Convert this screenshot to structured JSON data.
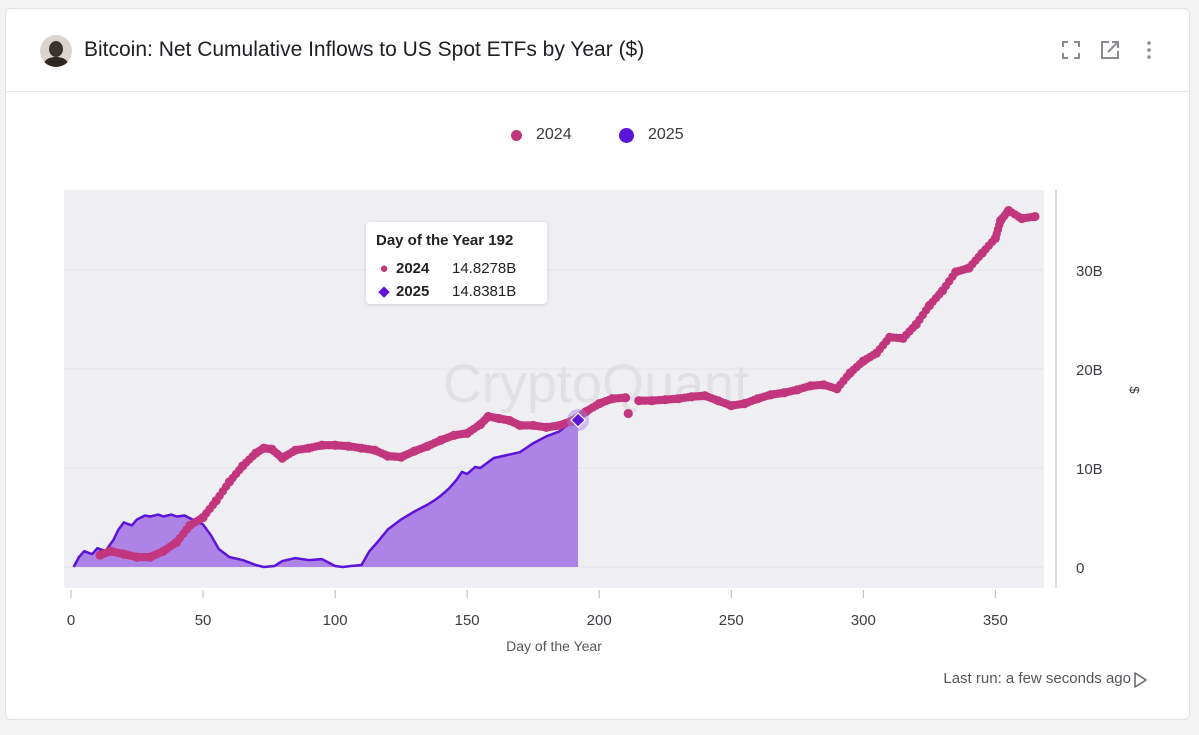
{
  "header": {
    "title": "Bitcoin: Net Cumulative Inflows to US Spot ETFs by Year ($)",
    "icons": [
      "avatar",
      "fullscreen-icon",
      "open-external-icon",
      "more-vertical-icon"
    ]
  },
  "legend": {
    "items": [
      {
        "label": "2024",
        "color": "#c2367e"
      },
      {
        "label": "2025",
        "color": "#5b14d8"
      }
    ]
  },
  "watermark": "CryptoQuant",
  "tooltip": {
    "title": "Day of the Year 192",
    "rows": [
      {
        "marker": "●",
        "name": "2024",
        "value": "14.8278B",
        "color": "#c2367e"
      },
      {
        "marker": "◆",
        "name": "2025",
        "value": "14.8381B",
        "color": "#5b14d8"
      }
    ]
  },
  "footer": {
    "last_run": "Last run: a few seconds ago",
    "icon": "play-icon"
  },
  "colors": {
    "series_2024": "#c2367e",
    "series_2025_line": "#5b14d8",
    "series_2025_fill": "#a87ae6",
    "plot_bg": "#efeff3"
  },
  "chart_data": {
    "type": "scatter",
    "title": "Bitcoin: Net Cumulative Inflows to US Spot ETFs by Year ($)",
    "xlabel": "Day of the Year",
    "ylabel": "$",
    "xlim": [
      0,
      368
    ],
    "ylim": [
      -2,
      38
    ],
    "x_ticks": [
      0,
      50,
      100,
      150,
      200,
      250,
      300,
      350
    ],
    "x_tick_labels": [
      "0",
      "50",
      "100",
      "150",
      "200",
      "250",
      "300",
      "350"
    ],
    "y_ticks": [
      0,
      10,
      20,
      30
    ],
    "y_tick_labels": [
      "0",
      "10B",
      "20B",
      "30B"
    ],
    "y_axis_position": "right",
    "legend_position": "top-center",
    "grid": true,
    "series": [
      {
        "name": "2024",
        "style": "markers",
        "color": "#c2367e",
        "x": [
          11,
          15,
          20,
          25,
          30,
          35,
          40,
          45,
          50,
          55,
          60,
          65,
          70,
          73,
          76,
          80,
          85,
          90,
          95,
          100,
          105,
          110,
          115,
          120,
          125,
          130,
          135,
          140,
          145,
          150,
          155,
          158,
          162,
          166,
          170,
          175,
          180,
          185,
          190,
          195,
          200,
          205,
          210,
          211,
          215,
          220,
          225,
          230,
          235,
          240,
          245,
          250,
          255,
          260,
          265,
          270,
          275,
          280,
          285,
          290,
          295,
          300,
          305,
          310,
          315,
          320,
          325,
          330,
          335,
          340,
          345,
          350,
          352,
          355,
          360,
          365
        ],
        "y": [
          1.2,
          1.6,
          1.3,
          1.0,
          1.0,
          1.6,
          2.5,
          4.2,
          5.0,
          6.7,
          8.6,
          10.2,
          11.5,
          12.0,
          11.9,
          11.0,
          11.8,
          12.0,
          12.3,
          12.3,
          12.2,
          12.0,
          11.8,
          11.2,
          11.1,
          11.7,
          12.2,
          12.8,
          13.3,
          13.5,
          14.4,
          15.2,
          15.0,
          14.8,
          14.3,
          14.3,
          14.1,
          14.3,
          14.8,
          15.7,
          16.5,
          17.0,
          17.1,
          15.5,
          16.8,
          16.8,
          16.9,
          17.0,
          17.2,
          17.3,
          16.8,
          16.3,
          16.5,
          17.0,
          17.4,
          17.6,
          17.9,
          18.3,
          18.4,
          18.0,
          19.6,
          20.8,
          21.6,
          23.2,
          23.1,
          24.5,
          26.4,
          27.9,
          29.8,
          30.2,
          31.7,
          33.2,
          35.0,
          36.0,
          35.2,
          35.4
        ]
      },
      {
        "name": "2025",
        "style": "area",
        "color": "#5b14d8",
        "fill": "#a87ae6",
        "x": [
          1,
          3,
          5,
          8,
          10,
          13,
          16,
          18,
          20,
          23,
          25,
          28,
          30,
          33,
          35,
          38,
          40,
          43,
          46,
          50,
          53,
          56,
          60,
          65,
          70,
          73,
          77,
          80,
          85,
          90,
          95,
          100,
          103,
          106,
          110,
          113,
          116,
          120,
          125,
          130,
          135,
          138,
          140,
          143,
          146,
          148,
          150,
          153,
          155,
          160,
          165,
          170,
          175,
          180,
          185,
          188,
          190,
          192
        ],
        "y": [
          0.0,
          1.0,
          1.6,
          1.3,
          1.9,
          1.6,
          2.7,
          3.8,
          4.5,
          4.2,
          4.8,
          5.2,
          5.1,
          5.3,
          5.1,
          5.3,
          5.1,
          5.2,
          4.8,
          4.3,
          3.2,
          1.8,
          1.0,
          0.7,
          0.2,
          0.0,
          0.1,
          0.6,
          0.9,
          0.7,
          0.8,
          0.1,
          0.0,
          0.1,
          0.2,
          1.6,
          2.5,
          3.8,
          4.8,
          5.6,
          6.3,
          6.8,
          7.2,
          7.9,
          8.8,
          9.6,
          9.4,
          10.1,
          10.0,
          11.0,
          11.3,
          11.6,
          12.5,
          13.2,
          13.7,
          14.4,
          14.4,
          14.84
        ]
      }
    ],
    "annotations": [
      {
        "text": "Day of the Year 192",
        "type": "tooltip",
        "x": 192,
        "values": {
          "2024": "14.8278B",
          "2025": "14.8381B"
        }
      }
    ]
  }
}
